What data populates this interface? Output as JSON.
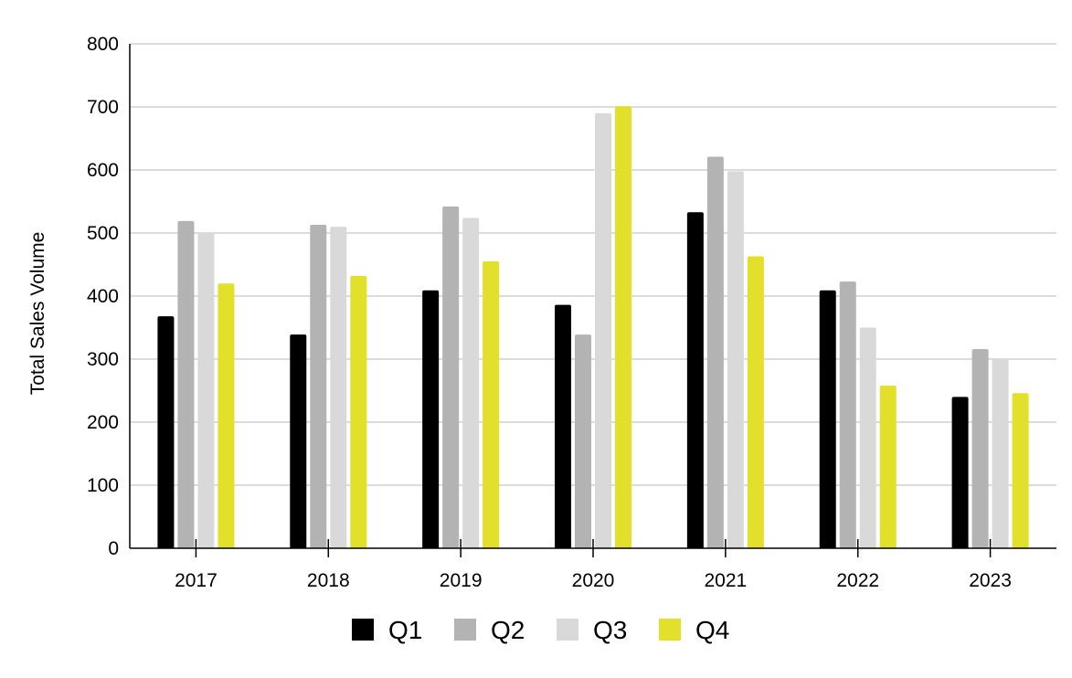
{
  "chart_data": {
    "type": "bar",
    "title": "",
    "xlabel": "",
    "ylabel": "Total Sales Volume",
    "ylim": [
      0,
      800
    ],
    "yticks": [
      0,
      100,
      200,
      300,
      400,
      500,
      600,
      700,
      800
    ],
    "grid": true,
    "legend_position": "bottom",
    "categories": [
      "2017",
      "2018",
      "2019",
      "2020",
      "2021",
      "2022",
      "2023"
    ],
    "series": [
      {
        "name": "Q1",
        "color": "#000000",
        "values": [
          368,
          339,
          409,
          386,
          533,
          409,
          240
        ]
      },
      {
        "name": "Q2",
        "color": "#b3b3b3",
        "values": [
          519,
          513,
          542,
          339,
          621,
          423,
          316
        ]
      },
      {
        "name": "Q3",
        "color": "#d9d9d9",
        "values": [
          501,
          510,
          524,
          690,
          598,
          350,
          300
        ]
      },
      {
        "name": "Q4",
        "color": "#e3e02c",
        "values": [
          420,
          432,
          455,
          701,
          463,
          258,
          246
        ]
      }
    ]
  }
}
